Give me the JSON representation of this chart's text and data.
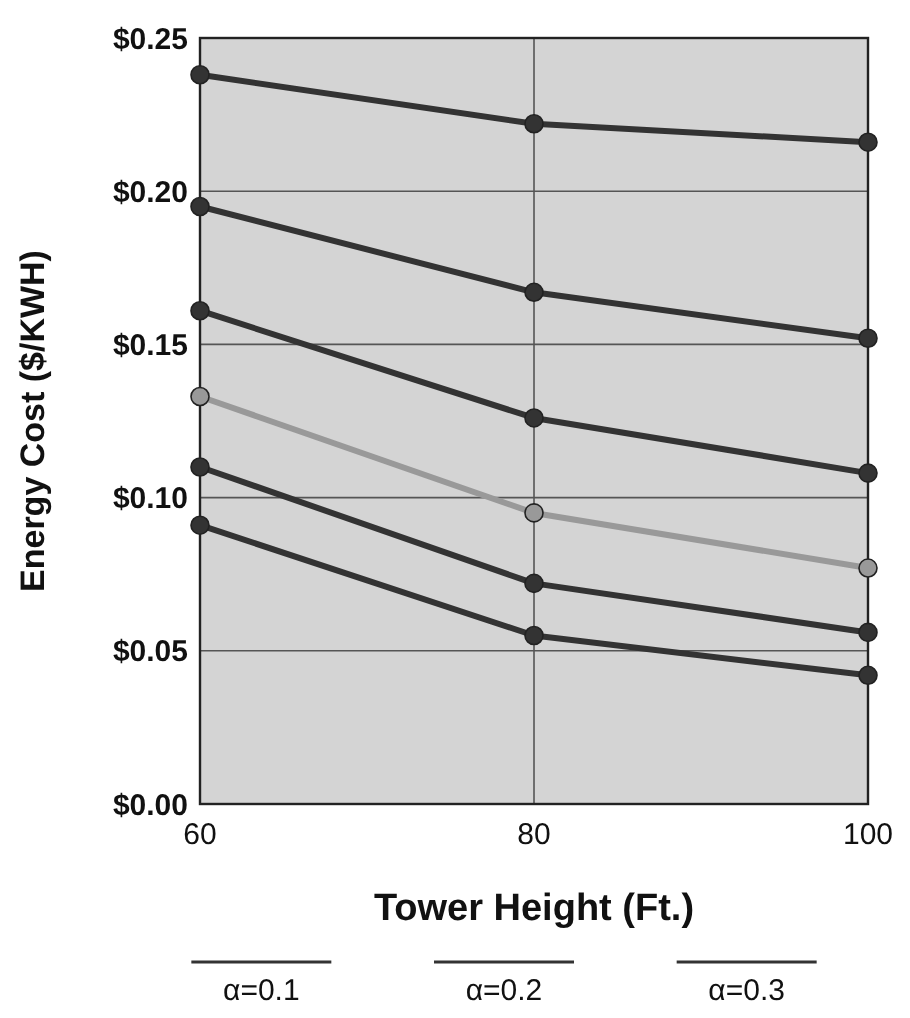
{
  "chart_data": {
    "type": "line",
    "xlabel": "Tower Height (Ft.)",
    "ylabel": "Energy Cost ($/KWH)",
    "x": [
      60,
      80,
      100
    ],
    "series": [
      {
        "color": "#333333",
        "values": [
          0.238,
          0.222,
          0.216
        ]
      },
      {
        "color": "#333333",
        "values": [
          0.195,
          0.167,
          0.152
        ]
      },
      {
        "color": "#333333",
        "values": [
          0.161,
          0.126,
          0.108
        ]
      },
      {
        "color": "#999999",
        "values": [
          0.133,
          0.095,
          0.077
        ]
      },
      {
        "color": "#333333",
        "values": [
          0.11,
          0.072,
          0.056
        ]
      },
      {
        "color": "#333333",
        "values": [
          0.091,
          0.055,
          0.042
        ]
      }
    ],
    "xlim": [
      60,
      100
    ],
    "xticks": [
      60,
      80,
      100
    ],
    "ylim": [
      0,
      0.25
    ],
    "yticks": [
      {
        "value": 0,
        "label": "$0.00"
      },
      {
        "value": 0.05,
        "label": "$0.05"
      },
      {
        "value": 0.1,
        "label": "$0.10"
      },
      {
        "value": 0.15,
        "label": "$0.15"
      },
      {
        "value": 0.2,
        "label": "$0.20"
      },
      {
        "value": 0.25,
        "label": "$0.25"
      }
    ],
    "grid": true,
    "marker": "circle",
    "line_style": "solid",
    "annotations": [
      "α=0.1",
      "α=0.2",
      "α=0.3"
    ]
  }
}
